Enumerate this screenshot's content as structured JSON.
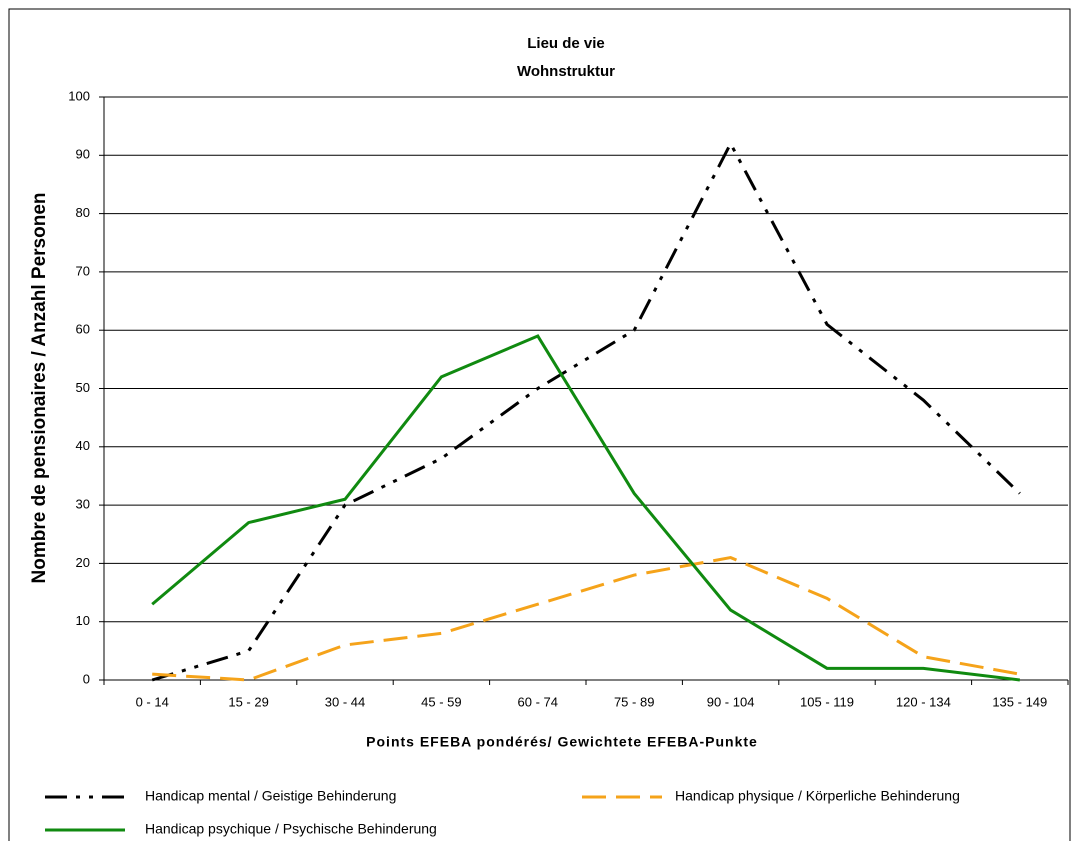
{
  "chart_data": {
    "type": "line",
    "title": [
      "Lieu de vie",
      "Wohnstruktur"
    ],
    "x_label": "Points EFEBA pondérés/ Gewichtete EFEBA-Punkte",
    "y_label": "Nombre de pensionaires / Anzahl Personen",
    "categories": [
      "0 - 14",
      "15 - 29",
      "30 - 44",
      "45 - 59",
      "60 - 74",
      "75 - 89",
      "90 - 104",
      "105 - 119",
      "120 - 134",
      "135 - 149"
    ],
    "series": [
      {
        "name": "Handicap mental / Geistige Behinderung",
        "color": "#000000",
        "dash": "22 9 4 9 4 9",
        "values": [
          0,
          5,
          30,
          38,
          50,
          60,
          92,
          61,
          48,
          32
        ]
      },
      {
        "name": "Handicap physique / Körperliche Behinderung",
        "color": "#f5a31a",
        "dash": "24 10",
        "values": [
          1,
          0,
          6,
          8,
          13,
          18,
          21,
          14,
          4,
          1
        ]
      },
      {
        "name": "Handicap psychique / Psychische Behinderung",
        "color": "#108a10",
        "dash": "",
        "values": [
          13,
          27,
          31,
          52,
          59,
          32,
          12,
          2,
          2,
          0
        ]
      }
    ],
    "ylim": [
      0,
      100
    ],
    "yticks": [
      0,
      10,
      20,
      30,
      40,
      50,
      60,
      70,
      80,
      90,
      100
    ],
    "grid": true
  }
}
